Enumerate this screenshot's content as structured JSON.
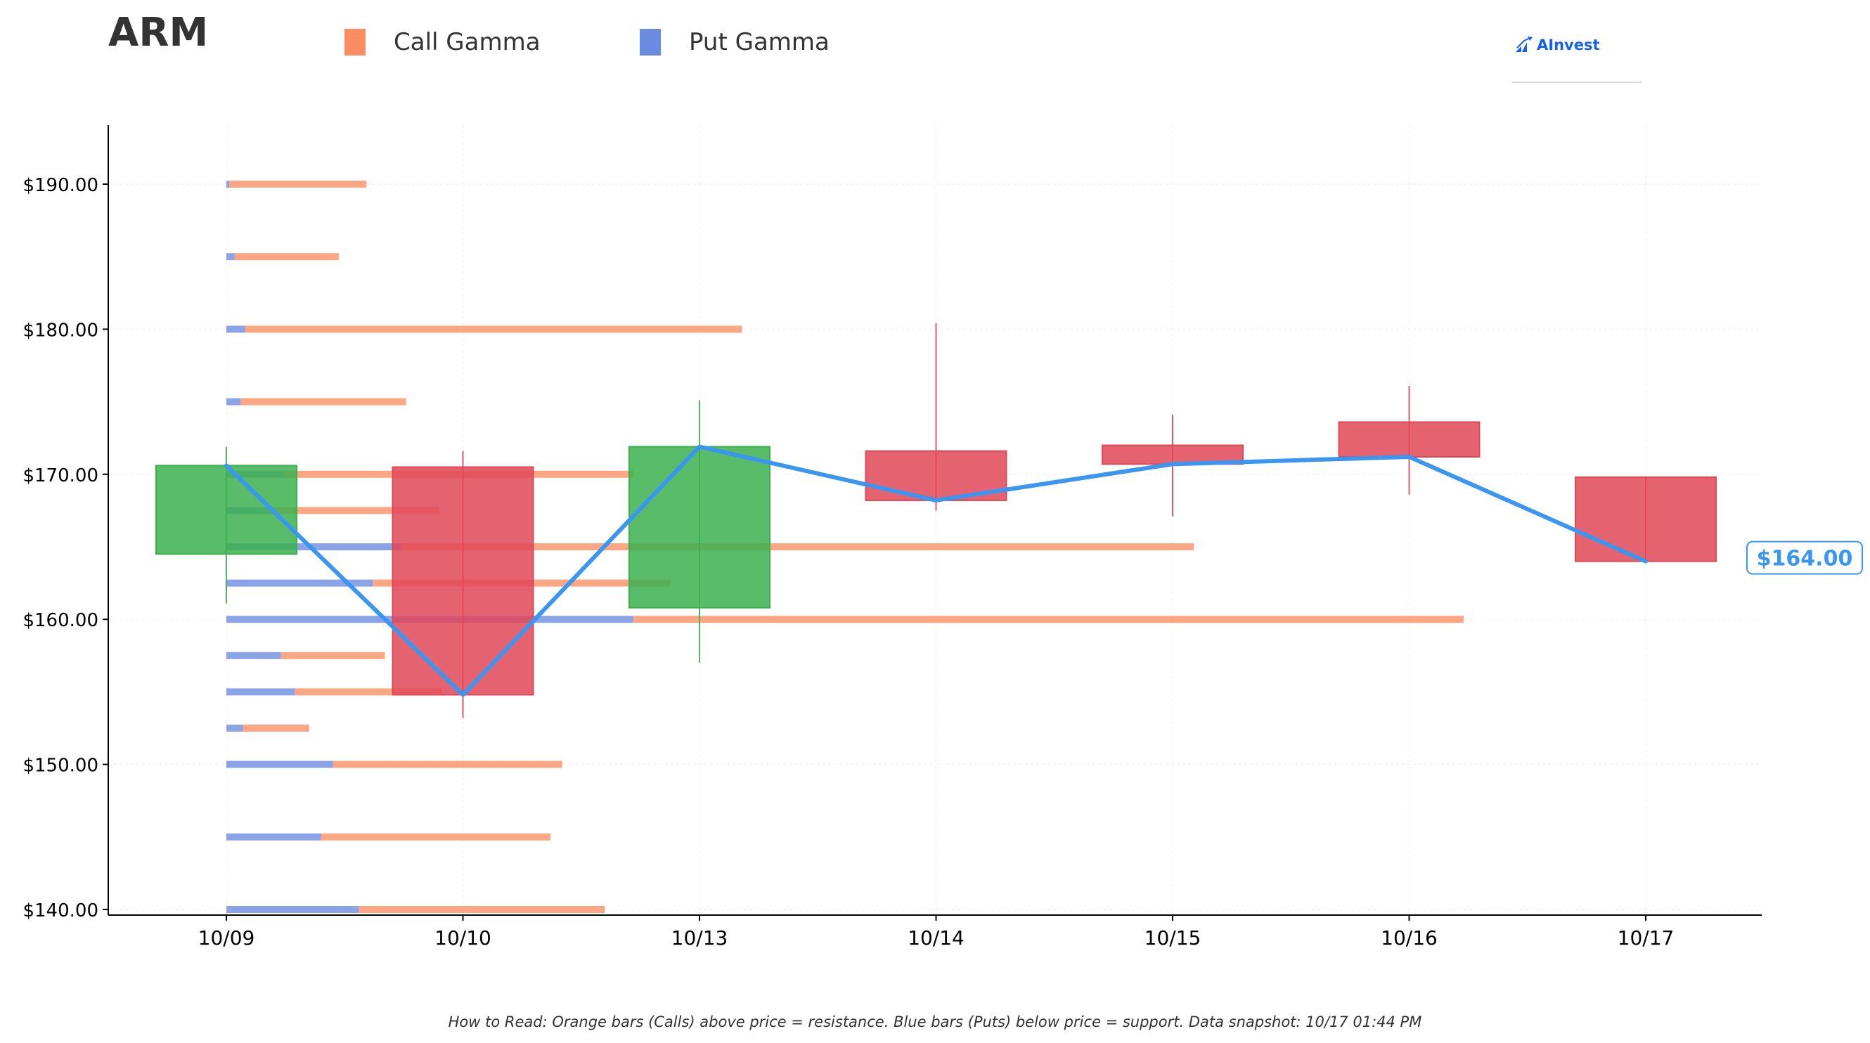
{
  "header": {
    "ticker": "ARM",
    "legend": [
      {
        "label": "Call Gamma",
        "color": "#fc8d62"
      },
      {
        "label": "Put Gamma",
        "color": "#6a8be0"
      }
    ],
    "brand": "AInvest"
  },
  "footnote": "How to Read: Orange bars (Calls) above price = resistance. Blue bars (Puts) below price = support. Data snapshot: 10/17 01:44 PM",
  "colors": {
    "call": "#fc8d62",
    "put": "#6a8be0",
    "up_candle": "#3cb04f",
    "down_candle": "#e04857",
    "price_line": "#3a96f0",
    "axis": "#000000"
  },
  "chart_data": {
    "type": "candlestick",
    "title": "ARM",
    "xlabel": "",
    "ylabel": "",
    "categories": [
      "10/09",
      "10/10",
      "10/13",
      "10/14",
      "10/15",
      "10/16",
      "10/17"
    ],
    "ylim": [
      140,
      194
    ],
    "yticks": [
      140,
      150,
      160,
      170,
      180,
      190
    ],
    "ytick_labels": [
      "$140.00",
      "$150.00",
      "$160.00",
      "$170.00",
      "$180.00",
      "$190.00"
    ],
    "grid": true,
    "candles": [
      {
        "date": "10/09",
        "open": 164.5,
        "high": 171.9,
        "low": 161.1,
        "close": 170.6
      },
      {
        "date": "10/10",
        "open": 170.5,
        "high": 171.6,
        "low": 153.2,
        "close": 154.8
      },
      {
        "date": "10/13",
        "open": 160.8,
        "high": 175.1,
        "low": 157.0,
        "close": 171.9
      },
      {
        "date": "10/14",
        "open": 171.6,
        "high": 180.4,
        "low": 167.5,
        "close": 168.2
      },
      {
        "date": "10/15",
        "open": 172.0,
        "high": 174.1,
        "low": 167.1,
        "close": 170.7
      },
      {
        "date": "10/16",
        "open": 173.6,
        "high": 176.1,
        "low": 168.6,
        "close": 171.2
      },
      {
        "date": "10/17",
        "open": 169.8,
        "high": 169.8,
        "low": 164.0,
        "close": 164.0
      }
    ],
    "price_line": [
      170.6,
      154.8,
      171.9,
      168.2,
      170.7,
      171.2,
      164.0
    ],
    "last_price_label": "$164.00",
    "gamma_units": "relative (fraction of date span from 10/09)",
    "gamma_levels": [
      {
        "strike": 190.0,
        "put": 0.012,
        "call": 0.58
      },
      {
        "strike": 185.0,
        "put": 0.035,
        "call": 0.44
      },
      {
        "strike": 180.0,
        "put": 0.08,
        "call": 2.1
      },
      {
        "strike": 175.0,
        "put": 0.06,
        "call": 0.7
      },
      {
        "strike": 170.0,
        "put": 0.24,
        "call": 1.48
      },
      {
        "strike": 167.5,
        "put": 0.2,
        "call": 0.7
      },
      {
        "strike": 165.0,
        "put": 0.74,
        "call": 3.35
      },
      {
        "strike": 162.5,
        "put": 0.62,
        "call": 1.26
      },
      {
        "strike": 160.0,
        "put": 1.72,
        "call": 3.51
      },
      {
        "strike": 157.5,
        "put": 0.23,
        "call": 0.44
      },
      {
        "strike": 155.0,
        "put": 0.29,
        "call": 0.62
      },
      {
        "strike": 152.5,
        "put": 0.07,
        "call": 0.28
      },
      {
        "strike": 150.0,
        "put": 0.45,
        "call": 0.97
      },
      {
        "strike": 145.0,
        "put": 0.4,
        "call": 0.97
      },
      {
        "strike": 140.0,
        "put": 0.56,
        "call": 1.04
      }
    ]
  }
}
